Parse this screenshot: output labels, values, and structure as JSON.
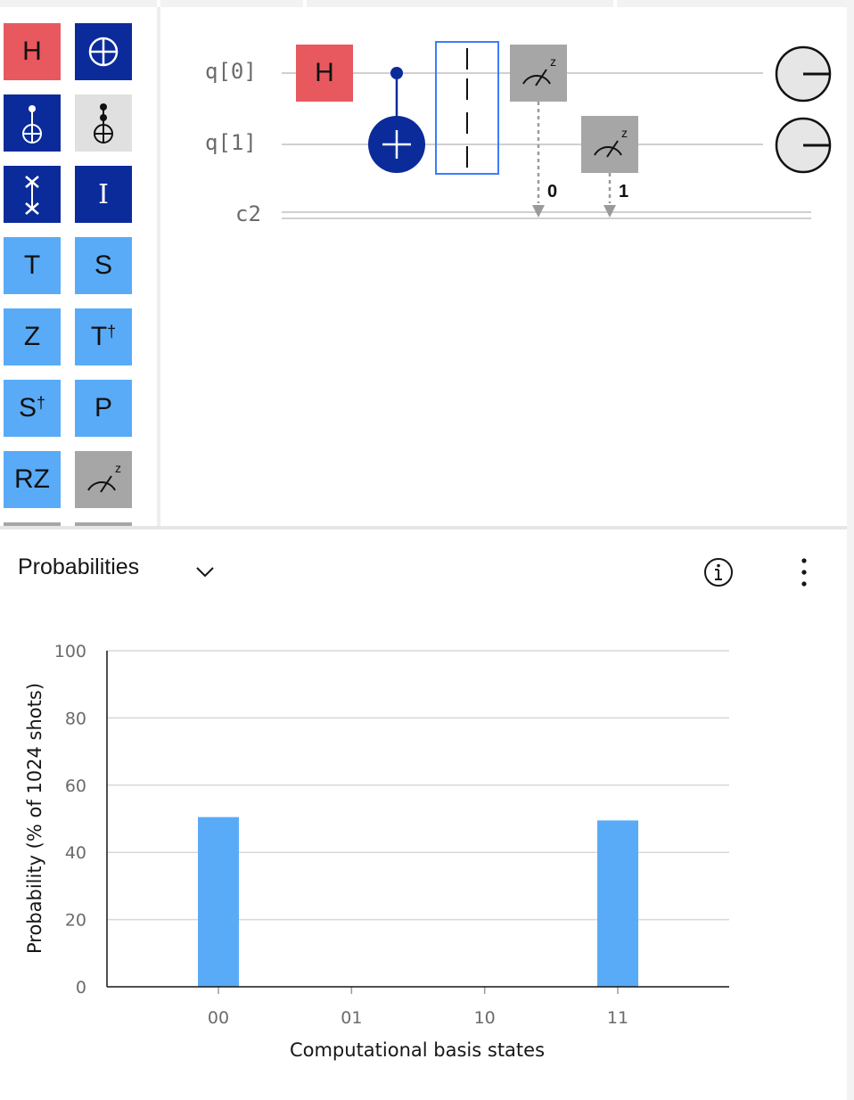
{
  "palette": {
    "gates": [
      {
        "label": "H",
        "icon": "h-gate"
      },
      {
        "label": "",
        "icon": "not-gate-icon"
      },
      {
        "label": "",
        "icon": "cnot-gate-icon"
      },
      {
        "label": "",
        "icon": "toffoli-gate-icon"
      },
      {
        "label": "",
        "icon": "swap-gate-icon"
      },
      {
        "label": "I",
        "icon": "identity-gate"
      },
      {
        "label": "T",
        "icon": "t-gate"
      },
      {
        "label": "S",
        "icon": "s-gate"
      },
      {
        "label": "Z",
        "icon": "z-gate"
      },
      {
        "label": "T",
        "sup": "†",
        "icon": "tdg-gate"
      },
      {
        "label": "S",
        "sup": "†",
        "icon": "sdg-gate"
      },
      {
        "label": "P",
        "icon": "phase-gate"
      },
      {
        "label": "RZ",
        "icon": "rz-gate"
      },
      {
        "label": "z",
        "icon": "measure-z-icon"
      }
    ]
  },
  "circuit": {
    "qubits": [
      "q[0]",
      "q[1]"
    ],
    "classical": "c2",
    "gate_h_label": "H",
    "measure_basis": "z",
    "measure_bits": [
      "0",
      "1"
    ]
  },
  "panel": {
    "title": "Probabilities",
    "dropdown_icon": "chevron-down-icon",
    "info_icon": "info-icon",
    "menu_icon": "overflow-menu-icon"
  },
  "colors": {
    "h_gate": "#e8585f",
    "navy_gate": "#0b2b9a",
    "light_gate": "#5aabf7",
    "measure_gate": "#a6a6a6",
    "bar": "#5aabf7"
  },
  "chart_data": {
    "type": "bar",
    "categories": [
      "00",
      "01",
      "10",
      "11"
    ],
    "values": [
      50.5,
      0,
      0,
      49.5
    ],
    "ylim": [
      0,
      100
    ],
    "yticks": [
      "0",
      "20",
      "40",
      "60",
      "80",
      "100"
    ],
    "ylabel": "Probability (% of 1024 shots)",
    "xlabel": "Computational basis states",
    "grid": true
  }
}
